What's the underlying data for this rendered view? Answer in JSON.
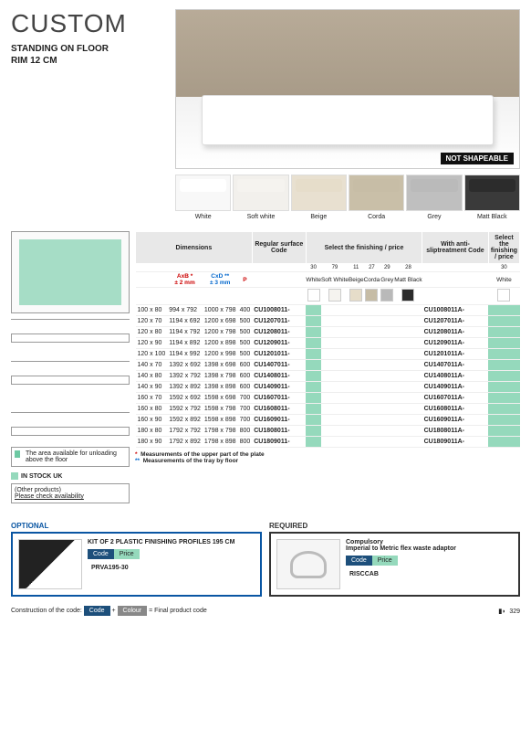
{
  "header": {
    "title": "CUSTOM",
    "subtitle1": "STANDING ON FLOOR",
    "subtitle2": "RIM 12 CM",
    "not_shapeable": "NOT SHAPEABLE"
  },
  "swatches": [
    {
      "label": "White",
      "bg": "#f8f8f8",
      "chip": "#ffffff"
    },
    {
      "label": "Soft white",
      "bg": "#f2f0ec",
      "chip": "#f5f3ef"
    },
    {
      "label": "Beige",
      "bg": "#e8e0d0",
      "chip": "#e6ddc9"
    },
    {
      "label": "Corda",
      "bg": "#c9bfa8",
      "chip": "#c6bca5"
    },
    {
      "label": "Grey",
      "bg": "#bfbfbf",
      "chip": "#b9b9b9"
    },
    {
      "label": "Matt Black",
      "bg": "#3a3a3a",
      "chip": "#2b2b2b"
    }
  ],
  "table": {
    "headers": {
      "dim": "Dimensions",
      "reg": "Regular surface Code",
      "sel": "Select the finishing / price",
      "anti": "With anti-sliptreatment Code",
      "sel2": "Select the finishing / price"
    },
    "ax": {
      "ab": "AxB *",
      "abnote": "± 2 mm",
      "cd": "CxD **",
      "cdnote": "± 3 mm",
      "p": "P"
    },
    "finish_nums": [
      "30",
      "79",
      "11",
      "27",
      "29",
      "28"
    ],
    "finish_labels": [
      "White",
      "Soft White",
      "Beige",
      "Corda",
      "Grey",
      "Matt Black"
    ],
    "finish_colors": [
      "#ffffff",
      "#f5f3ef",
      "#e6ddc9",
      "#c6bca5",
      "#b9b9b9",
      "#2b2b2b"
    ],
    "finish2_num": "30",
    "finish2_label": "White",
    "rows": [
      {
        "d": "100 x 80",
        "ab": "994 x 792",
        "cd": "1000 x 798",
        "p": "400",
        "c1": "CU1008011-",
        "c2": "CU1008011A-"
      },
      {
        "d": "120 x 70",
        "ab": "1194 x 692",
        "cd": "1200 x 698",
        "p": "500",
        "c1": "CU1207011-",
        "c2": "CU1207011A-"
      },
      {
        "d": "120 x 80",
        "ab": "1194 x 792",
        "cd": "1200 x 798",
        "p": "500",
        "c1": "CU1208011-",
        "c2": "CU1208011A-"
      },
      {
        "d": "120 x 90",
        "ab": "1194 x 892",
        "cd": "1200 x 898",
        "p": "500",
        "c1": "CU1209011-",
        "c2": "CU1209011A-"
      },
      {
        "d": "120 x 100",
        "ab": "1194 x 992",
        "cd": "1200 x 998",
        "p": "500",
        "c1": "CU1201011-",
        "c2": "CU1201011A-"
      },
      {
        "d": "140 x 70",
        "ab": "1392 x 692",
        "cd": "1398 x 698",
        "p": "600",
        "c1": "CU1407011-",
        "c2": "CU1407011A-"
      },
      {
        "d": "140 x 80",
        "ab": "1392 x 792",
        "cd": "1398 x 798",
        "p": "600",
        "c1": "CU1408011-",
        "c2": "CU1408011A-"
      },
      {
        "d": "140 x 90",
        "ab": "1392 x 892",
        "cd": "1398 x 898",
        "p": "600",
        "c1": "CU1409011-",
        "c2": "CU1409011A-"
      },
      {
        "d": "160 x 70",
        "ab": "1592 x 692",
        "cd": "1598 x 698",
        "p": "700",
        "c1": "CU1607011-",
        "c2": "CU1607011A-"
      },
      {
        "d": "160 x 80",
        "ab": "1592 x 792",
        "cd": "1598 x 798",
        "p": "700",
        "c1": "CU1608011-",
        "c2": "CU1608011A-"
      },
      {
        "d": "160 x 90",
        "ab": "1592 x 892",
        "cd": "1598 x 898",
        "p": "700",
        "c1": "CU1609011-",
        "c2": "CU1609011A-"
      },
      {
        "d": "180 x 80",
        "ab": "1792 x 792",
        "cd": "1798 x 798",
        "p": "800",
        "c1": "CU1808011-",
        "c2": "CU1808011A-"
      },
      {
        "d": "180 x 90",
        "ab": "1792 x 892",
        "cd": "1798 x 898",
        "p": "800",
        "c1": "CU1809011-",
        "c2": "CU1809011A-"
      }
    ],
    "note1": "Measurements of the upper part of the plate",
    "note2": "Measurements of the tray by floor"
  },
  "stock": {
    "area": "The area available for unloading above the floor",
    "in": "IN STOCK UK",
    "other": "(Other products)",
    "check": "Please check availability"
  },
  "optional": {
    "h": "OPTIONAL",
    "title": "KIT OF 2 PLASTIC FINISHING PROFILES 195 CM",
    "th1": "Code",
    "th2": "Price",
    "code": "PRVA195-30"
  },
  "required": {
    "h": "REQUIRED",
    "sub": "Compulsory",
    "title": "Imperial to Metric flex waste adaptor",
    "th1": "Code",
    "th2": "Price",
    "code": "RISCCAB"
  },
  "footer": {
    "c1": "Construction of the code:",
    "b1": "Code",
    "plus": "+",
    "b2": "Colour",
    "eq": "=",
    "c2": "Final product code",
    "page": "329"
  }
}
